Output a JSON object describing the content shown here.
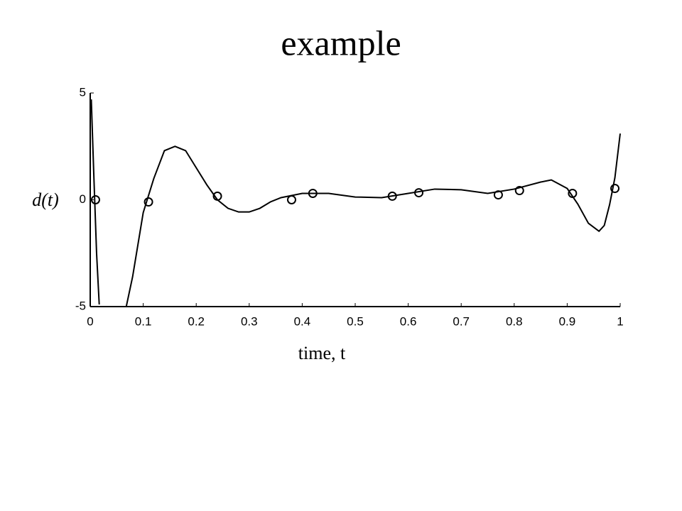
{
  "chart_data": {
    "type": "line",
    "title": "example",
    "ylabel": "d(t)",
    "xlabel": "time, t",
    "color": "#000000",
    "x": [
      0.002,
      0.007,
      0.012,
      0.017,
      0.04,
      0.068,
      0.08,
      0.1,
      0.12,
      0.14,
      0.16,
      0.18,
      0.2,
      0.22,
      0.24,
      0.26,
      0.28,
      0.3,
      0.32,
      0.34,
      0.36,
      0.4,
      0.45,
      0.5,
      0.55,
      0.6,
      0.65,
      0.7,
      0.75,
      0.8,
      0.85,
      0.87,
      0.9,
      0.92,
      0.94,
      0.96,
      0.97,
      0.98,
      0.99,
      1.0
    ],
    "values": [
      4.7,
      1.0,
      -2.5,
      -4.9,
      null,
      -5,
      -3.6,
      -0.6,
      1.0,
      2.3,
      2.5,
      2.3,
      1.5,
      0.7,
      0.0,
      -0.4,
      -0.57,
      -0.57,
      -0.4,
      -0.1,
      0.1,
      0.3,
      0.3,
      0.13,
      0.1,
      0.3,
      0.5,
      0.47,
      0.3,
      0.5,
      0.83,
      0.93,
      0.53,
      -0.2,
      -1.1,
      -1.47,
      -1.2,
      -0.23,
      1.03,
      3.1
    ],
    "markers": {
      "x": [
        0.01,
        0.11,
        0.24,
        0.38,
        0.42,
        0.57,
        0.62,
        0.77,
        0.81,
        0.91,
        0.99
      ],
      "values": [
        0.0,
        -0.1,
        0.17,
        0.0,
        0.3,
        0.17,
        0.33,
        0.23,
        0.43,
        0.3,
        0.53
      ]
    },
    "xlim": [
      0,
      1
    ],
    "xticks": [
      0,
      0.1,
      0.2,
      0.3,
      0.4,
      0.5,
      0.6,
      0.7,
      0.8,
      0.9,
      1
    ],
    "ylim": [
      -5,
      5
    ],
    "yticks": [
      -5,
      0,
      5
    ]
  }
}
